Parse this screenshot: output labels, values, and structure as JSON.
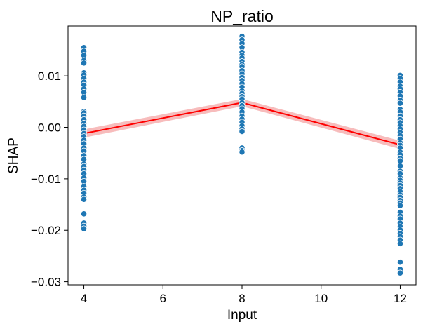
{
  "chart_data": {
    "type": "scatter",
    "title": "NP_ratio",
    "xlabel": "Input",
    "ylabel": "SHAP",
    "xlim": [
      3.6,
      12.4
    ],
    "ylim": [
      -0.0306,
      0.0197
    ],
    "xticks": [
      4,
      6,
      8,
      10,
      12
    ],
    "xtick_labels": [
      "4",
      "6",
      "8",
      "10",
      "12"
    ],
    "yticks": [
      -0.03,
      -0.02,
      -0.01,
      0.0,
      0.01
    ],
    "ytick_labels": [
      "−0.03",
      "−0.02",
      "−0.01",
      "0.00",
      "0.01"
    ],
    "grid": false,
    "colors": {
      "points": "#1f77b4",
      "trend_line": "#ff0000",
      "confidence_band": "#f4a6a6"
    },
    "points": [
      {
        "x": 4,
        "y": [
          0.0155,
          0.0148,
          0.014,
          0.013,
          0.0125,
          0.0106,
          0.0102,
          0.0095,
          0.0088,
          0.0082,
          0.0075,
          0.0068,
          0.0058,
          0.0031,
          0.0028,
          0.0022,
          0.0015,
          0.0008,
          0.0002,
          -0.0005,
          -0.0012,
          -0.0018,
          -0.0025,
          -0.0032,
          -0.004,
          -0.0046,
          -0.0055,
          -0.0062,
          -0.0071,
          -0.0076,
          -0.0083,
          -0.009,
          -0.0098,
          -0.0105,
          -0.0115,
          -0.0122,
          -0.0128,
          -0.0135,
          -0.014,
          -0.0168,
          -0.0186,
          -0.0192,
          -0.0197
        ]
      },
      {
        "x": 8,
        "y": [
          0.0177,
          0.017,
          0.0163,
          0.0155,
          0.0146,
          0.014,
          0.0135,
          0.0128,
          0.0122,
          0.0118,
          0.011,
          0.0104,
          0.0097,
          0.0091,
          0.0085,
          0.0078,
          0.0071,
          0.0066,
          0.006,
          0.0055,
          0.0048,
          0.0042,
          0.0036,
          0.003,
          0.0022,
          0.0016,
          0.001,
          0.0003,
          -0.0003,
          -0.0008,
          -0.004,
          -0.0045,
          -0.0048
        ]
      },
      {
        "x": 12,
        "y": [
          0.0101,
          0.0095,
          0.0088,
          0.008,
          0.0075,
          0.0068,
          0.0061,
          0.0053,
          0.0047,
          0.0035,
          0.003,
          0.0022,
          0.0015,
          0.0009,
          0.0003,
          -0.0003,
          -0.001,
          -0.0016,
          -0.0023,
          -0.003,
          -0.0035,
          -0.004,
          -0.0048,
          -0.0053,
          -0.006,
          -0.0065,
          -0.0075,
          -0.0085,
          -0.009,
          -0.0098,
          -0.0103,
          -0.0108,
          -0.0113,
          -0.0119,
          -0.0125,
          -0.0131,
          -0.0136,
          -0.0142,
          -0.0147,
          -0.0152,
          -0.0165,
          -0.0172,
          -0.0178,
          -0.0186,
          -0.0193,
          -0.0199,
          -0.0206,
          -0.0212,
          -0.0219,
          -0.0226,
          -0.0262,
          -0.0276,
          -0.0283
        ]
      }
    ],
    "trend_line": {
      "x": [
        4,
        8,
        12
      ],
      "y": [
        -0.0012,
        0.0048,
        -0.0034
      ],
      "ci_lower": [
        -0.002,
        0.0041,
        -0.0042
      ],
      "ci_upper": [
        -0.0004,
        0.0055,
        -0.0026
      ]
    }
  }
}
